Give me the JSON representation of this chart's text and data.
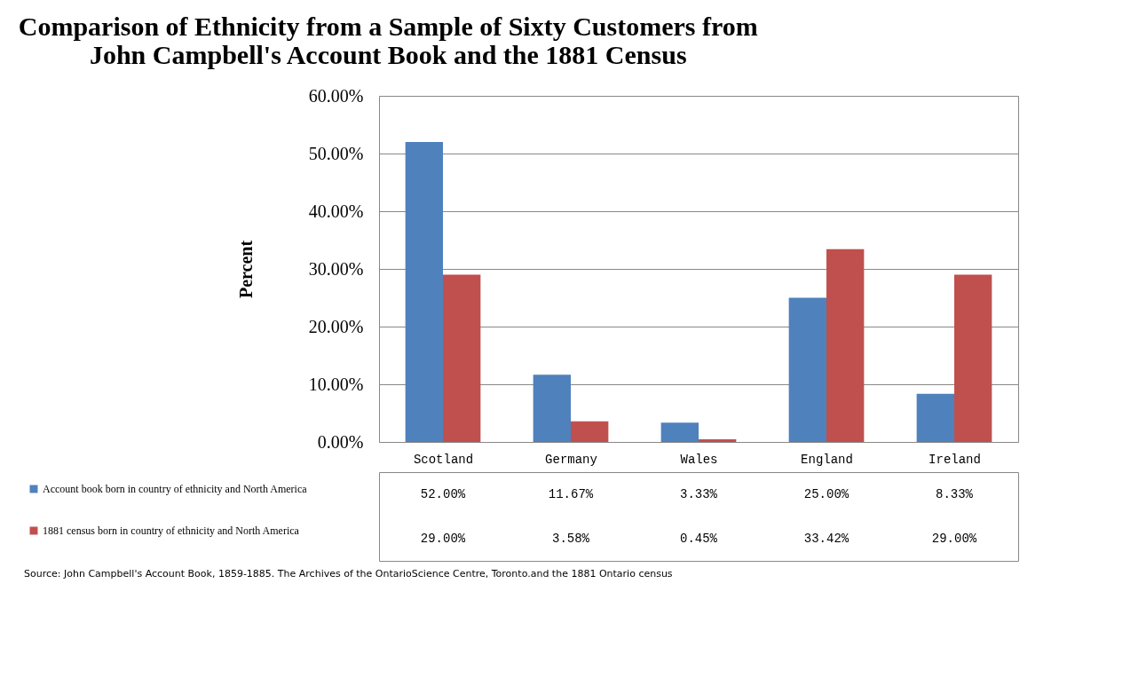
{
  "chart_data": {
    "type": "bar",
    "title": "Comparison of Ethnicity from a Sample of Sixty Customers from John Campbell's Account Book and the 1881 Census",
    "ylabel": "Percent",
    "categories": [
      "Scotland",
      "Germany",
      "Wales",
      "England",
      "Ireland"
    ],
    "series": [
      {
        "name": "Account book born in country of ethnicity and North America",
        "color": "#4f81bd",
        "values": [
          52.0,
          11.67,
          3.33,
          25.0,
          8.33
        ],
        "value_labels": [
          "52.00%",
          "11.67%",
          "3.33%",
          "25.00%",
          "8.33%"
        ]
      },
      {
        "name": "1881 census born in country of ethnicity and North America",
        "color": "#c0504d",
        "values": [
          29.0,
          3.58,
          0.45,
          33.42,
          29.0
        ],
        "value_labels": [
          "29.00%",
          "3.58%",
          "0.45%",
          "33.42%",
          "29.00%"
        ]
      }
    ],
    "ylim": [
      0,
      60
    ],
    "yticks": [
      {
        "value": 0,
        "label": "0.00%"
      },
      {
        "value": 10,
        "label": "10.00%"
      },
      {
        "value": 20,
        "label": "20.00%"
      },
      {
        "value": 30,
        "label": "30.00%"
      },
      {
        "value": 40,
        "label": "40.00%"
      },
      {
        "value": 50,
        "label": "50.00%"
      },
      {
        "value": 60,
        "label": "60.00%"
      }
    ],
    "grid": "y",
    "legend": "bottom",
    "annotations": [
      "Source: John Campbell's Account Book, 1859-1885.  The Archives of the OntarioScience Centre, Toronto.and the 1881 Ontario census"
    ]
  }
}
